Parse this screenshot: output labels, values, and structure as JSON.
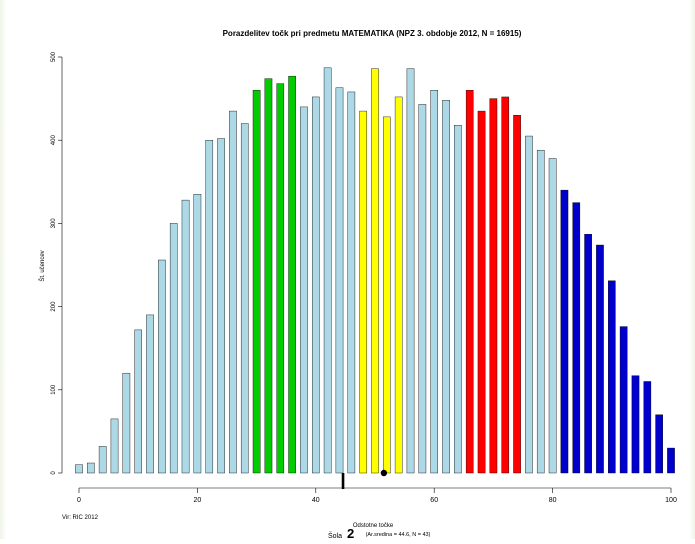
{
  "chart_data": {
    "type": "bar",
    "title": "Porazdelitev točk pri predmetu MATEMATIKA (NPZ 3. obdobje 2012, N = 16915)",
    "xlabel": "Odstotne točke",
    "x_sublabel": "(Ar.sredina = 44.6, N = 43)",
    "ylabel": "Št. učencev",
    "xlim": [
      0,
      100
    ],
    "ylim": [
      0,
      500
    ],
    "x_ticks": [
      0,
      20,
      40,
      60,
      80,
      100
    ],
    "y_ticks": [
      0,
      100,
      200,
      300,
      400,
      500
    ],
    "x": [
      0,
      2,
      4,
      6,
      8,
      10,
      12,
      14,
      16,
      18,
      20,
      22,
      24,
      26,
      28,
      30,
      32,
      34,
      36,
      38,
      40,
      42,
      44,
      46,
      48,
      50,
      52,
      54,
      56,
      58,
      60,
      62,
      64,
      66,
      68,
      70,
      72,
      74,
      76,
      78,
      80,
      82,
      84,
      86,
      88,
      90,
      92,
      94,
      96,
      98,
      100
    ],
    "values": [
      10,
      12,
      32,
      65,
      120,
      172,
      190,
      256,
      300,
      328,
      335,
      400,
      402,
      435,
      420,
      460,
      474,
      468,
      477,
      440,
      452,
      487,
      463,
      458,
      435,
      486,
      428,
      452,
      486,
      443,
      460,
      448,
      418,
      460,
      435,
      450,
      452,
      430,
      405,
      388,
      378,
      340,
      325,
      287,
      274,
      231,
      176,
      117,
      110,
      70,
      30
    ],
    "bar_groups": [
      {
        "from": 0,
        "to": 28,
        "color": "#add8e6"
      },
      {
        "from": 30,
        "to": 36,
        "color": "#00cc00"
      },
      {
        "from": 38,
        "to": 46,
        "color": "#add8e6"
      },
      {
        "from": 48,
        "to": 54,
        "color": "#ffff00"
      },
      {
        "from": 56,
        "to": 64,
        "color": "#add8e6"
      },
      {
        "from": 66,
        "to": 74,
        "color": "#ff0000"
      },
      {
        "from": 76,
        "to": 80,
        "color": "#add8e6"
      },
      {
        "from": 82,
        "to": 100,
        "color": "#0000cd"
      }
    ],
    "markers": {
      "school_mean": 44.6,
      "dot": 51.5
    },
    "grid": false,
    "legend": "none"
  },
  "labels": {
    "title": "Porazdelitev točk pri predmetu MATEMATIKA (NPZ 3. obdobje 2012, N = 16915)",
    "xlabel": "Odstotne točke",
    "x_sublabel": "(Ar.sredina = 44.6, N = 43)",
    "ylabel": "Št. učencev",
    "source": "Vir: RIC 2012",
    "school_label": "Šola",
    "school_number": "2"
  }
}
